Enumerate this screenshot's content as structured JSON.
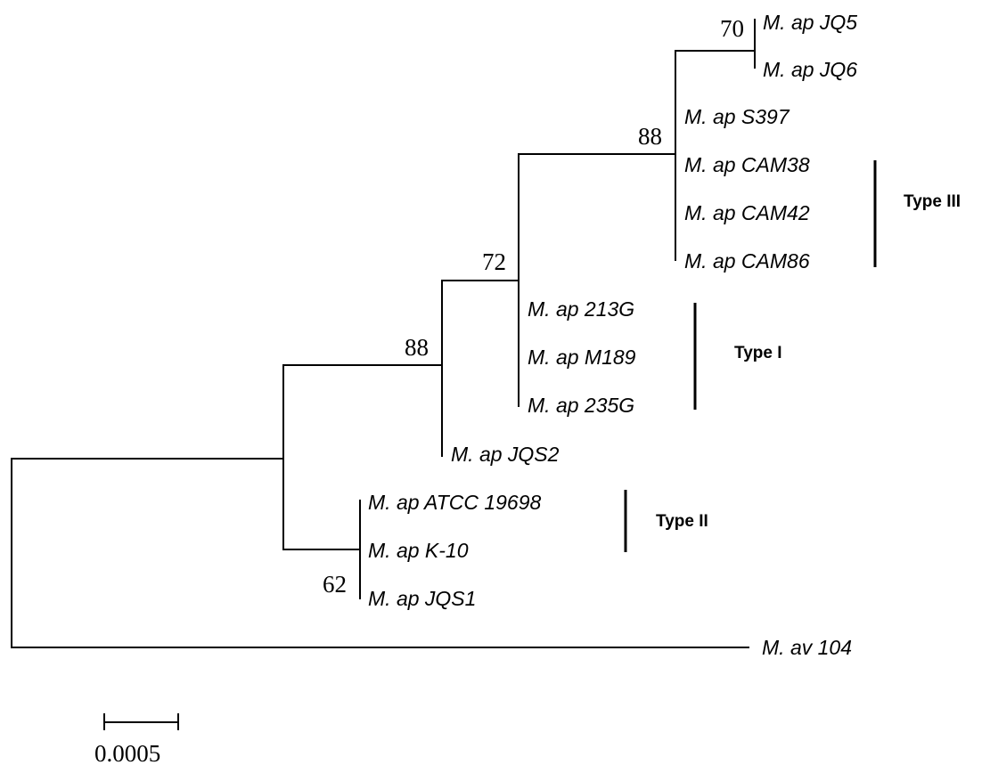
{
  "taxa": {
    "jq5": "M. ap JQ5",
    "jq6": "M. ap JQ6",
    "s397": "M. ap S397",
    "cam38": "M. ap CAM38",
    "cam42": "M. ap CAM42",
    "cam86": "M. ap CAM86",
    "g213": "M. ap 213G",
    "m189": "M. ap M189",
    "g235": "M. ap 235G",
    "jqs2": "M. ap JQS2",
    "atcc": "M. ap ATCC 19698",
    "k10": "M. ap K-10",
    "jqs1": "M. ap JQS1",
    "av104": "M. av 104"
  },
  "bootstrap": {
    "jq5_jq6": "70",
    "type3_clade": "88",
    "type1_type3_clade": "72",
    "jqs2_clade": "88",
    "type2_clade": "62"
  },
  "groups": {
    "type1": "Type I",
    "type2": "Type II",
    "type3": "Type III"
  },
  "scale": {
    "label": "0.0005"
  }
}
